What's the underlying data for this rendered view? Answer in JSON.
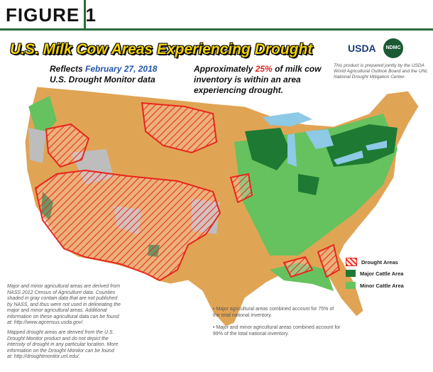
{
  "header": {
    "figure": "FIGURE 1",
    "title": "U.S. Milk Cow Areas Experiencing Drought",
    "reflects": {
      "prefix": "Reflects ",
      "date": "February 27, 2018",
      "source": "U.S. Drought Monitor data"
    },
    "summary": {
      "prefix": "Approximately ",
      "percent": "25%",
      "suffix": " of milk cow inventory is within an area experiencing drought."
    }
  },
  "logos": {
    "usda": "USDA",
    "ndmc": "NDMC",
    "credit": "This product is prepared jointly by the USDA World Agricultural Outlook Board and the UNL National Drought Mitigation Center."
  },
  "legend": [
    "Drought Areas",
    "Major Cattle Area",
    "Minor Cattle Area"
  ],
  "notes": [
    "Major and minor agricultural areas are derived from NASS 2012 Census of Agriculture data.  Counties shaded in gray contain data that are not published by NASS, and thus were not used in delineating the major and minor agricultural areas.  Additional information on these agricultural data can be found at:  http://www.agcensus.usda.gov/.",
    "Mapped drought areas are derived from the U.S. Drought Monitor product and do not depict the intensity of drought in any particular location.  More information on the Drought Monitor can be found at:  http://droughtmonitor.unl.edu/."
  ],
  "bullets": [
    "Major agricultural areas combined account for 75% of the total national inventory.",
    "Major and minor agricultural areas combined account for 99% of the total national inventory."
  ]
}
